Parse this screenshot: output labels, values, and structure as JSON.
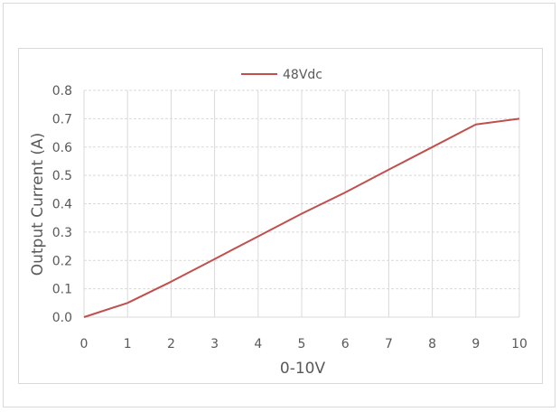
{
  "chart_data": {
    "type": "line",
    "title": "",
    "xlabel": "0-10V",
    "ylabel": "Output Current (A)",
    "xlim": [
      0,
      10
    ],
    "ylim": [
      0,
      0.8
    ],
    "x_ticks": [
      "0",
      "1",
      "2",
      "3",
      "4",
      "5",
      "6",
      "7",
      "8",
      "9",
      "10"
    ],
    "y_ticks": [
      "0.0",
      "0.1",
      "0.2",
      "0.3",
      "0.4",
      "0.5",
      "0.6",
      "0.7",
      "0.8"
    ],
    "grid": true,
    "legend_position": "top-center",
    "series": [
      {
        "name": "48Vdc",
        "color": "#c0504d",
        "x": [
          0,
          1,
          2,
          3,
          4,
          5,
          6,
          7,
          8,
          9,
          10
        ],
        "y": [
          0.0,
          0.05,
          0.125,
          0.205,
          0.285,
          0.365,
          0.44,
          0.52,
          0.6,
          0.68,
          0.7
        ]
      }
    ]
  }
}
